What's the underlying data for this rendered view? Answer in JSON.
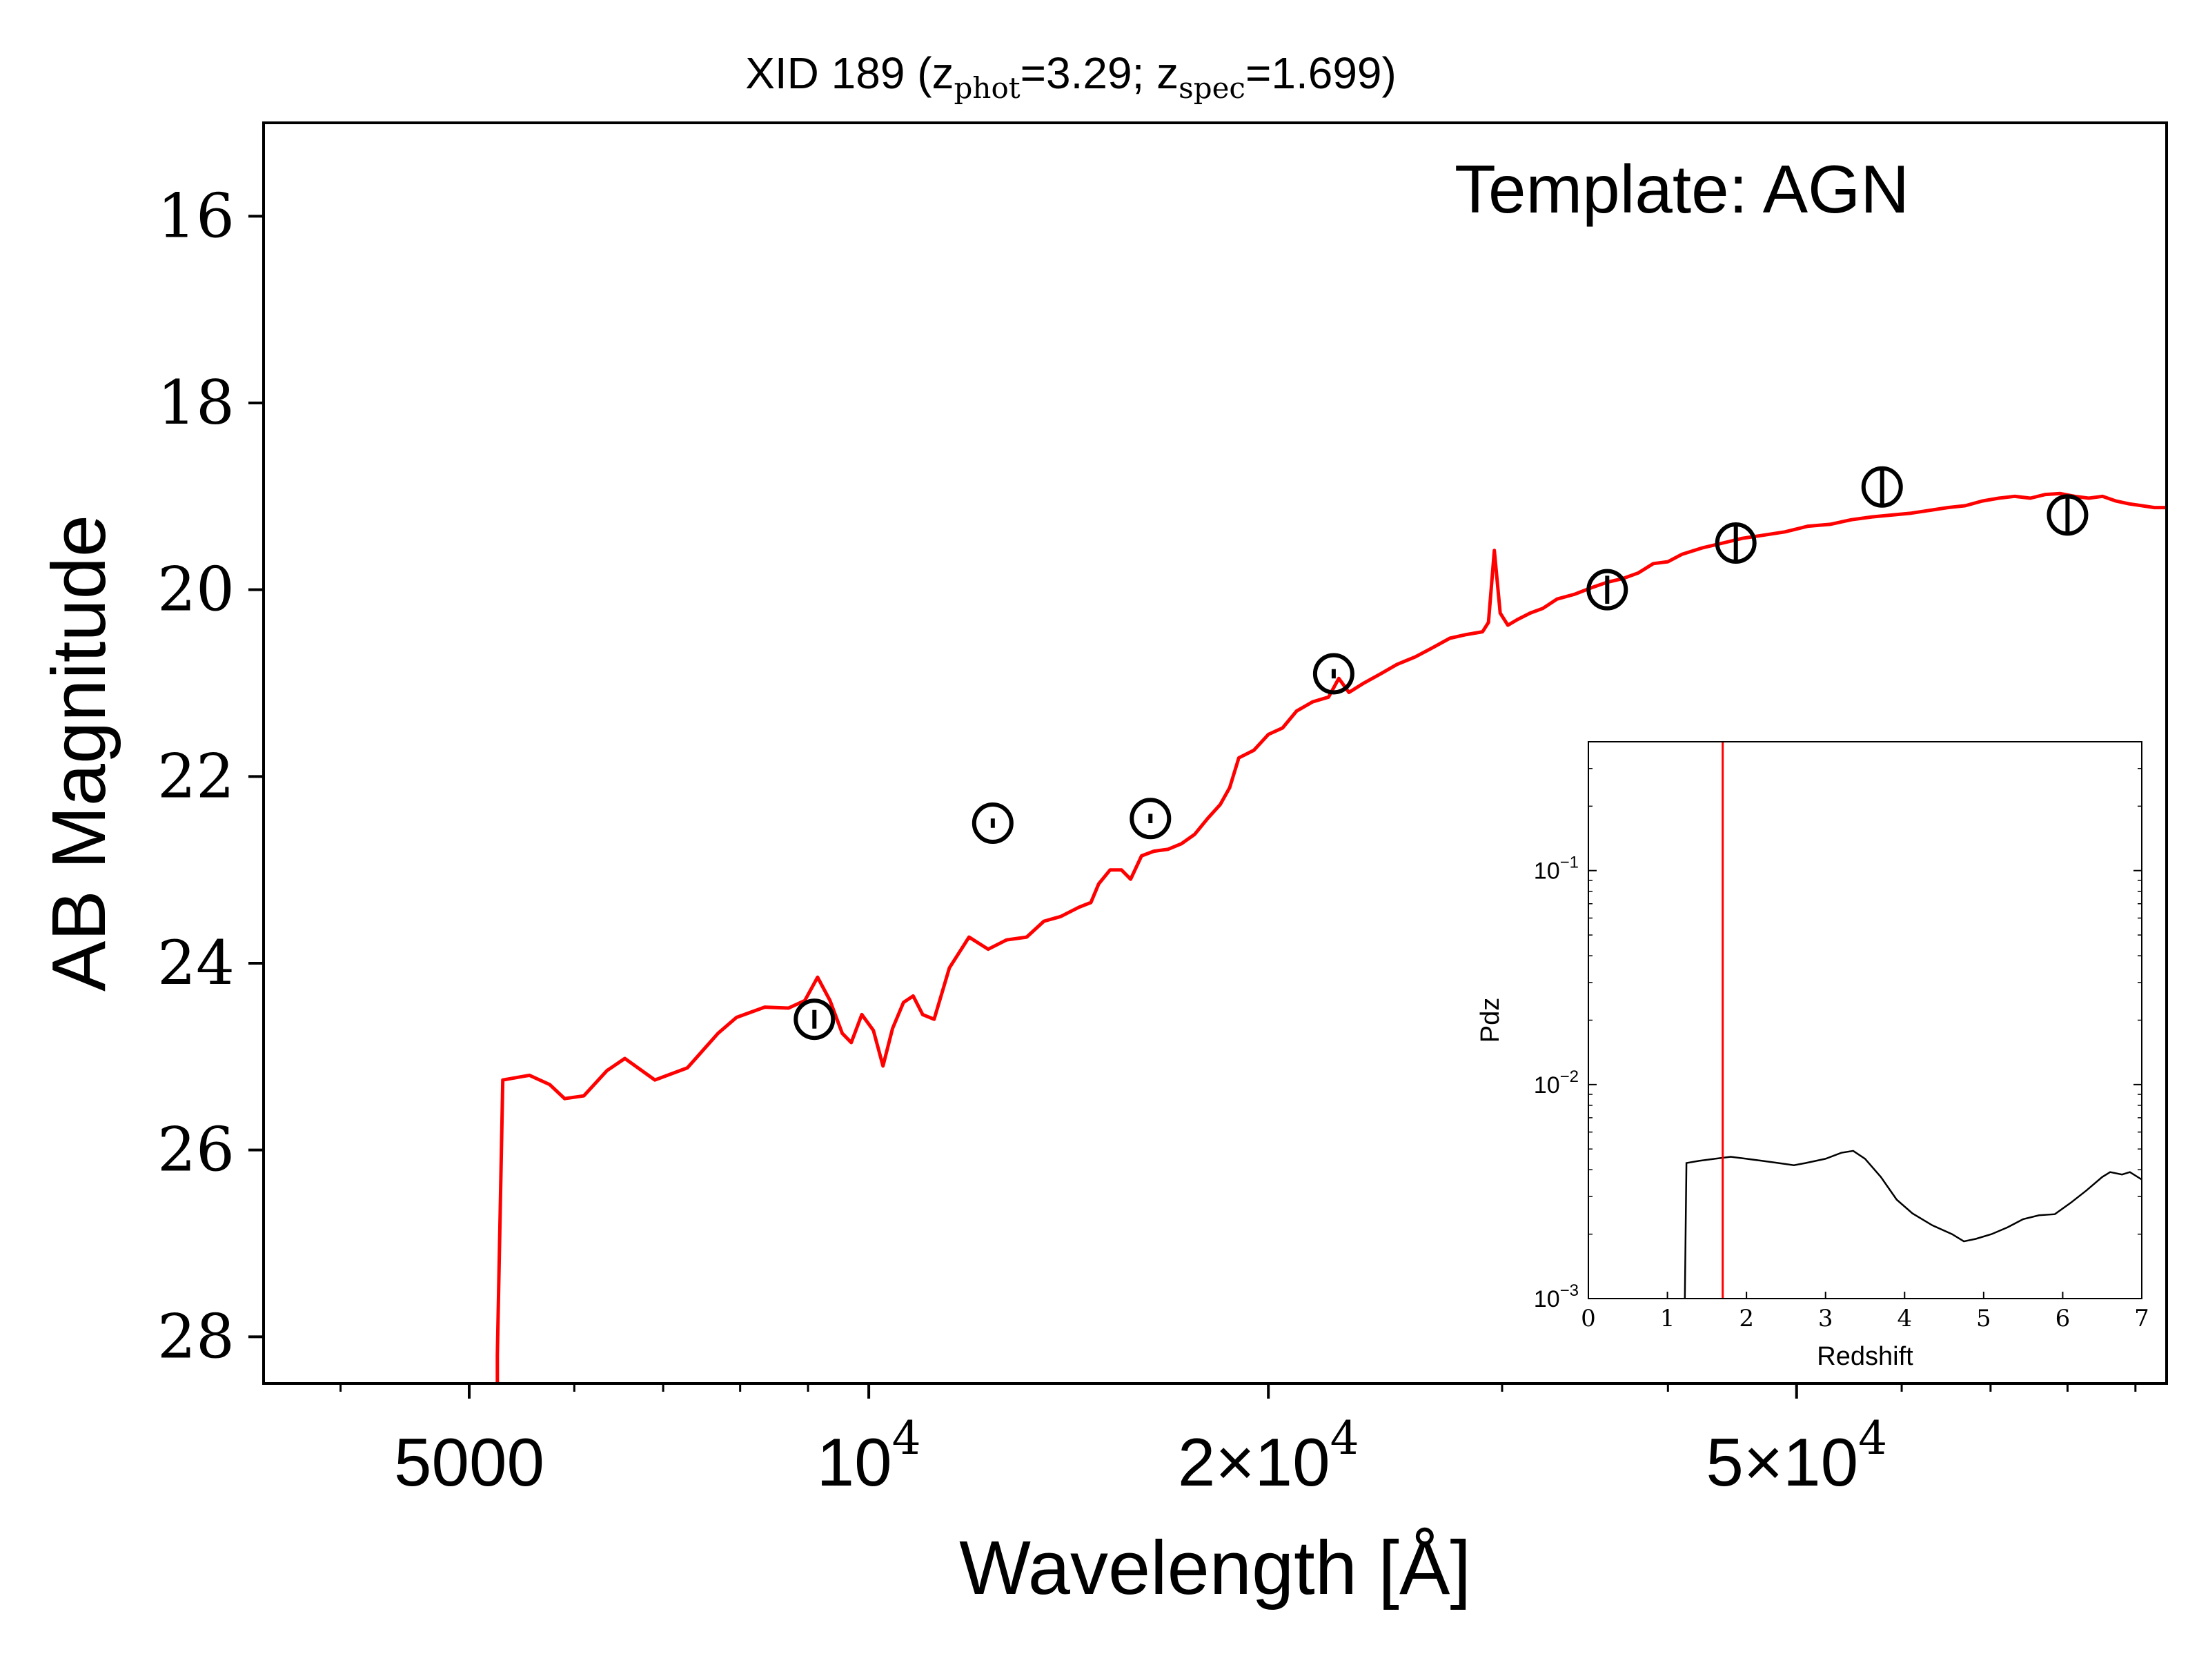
{
  "colors": {
    "model": "#ff0000",
    "observed": "#000000",
    "pdz_line": "#000000",
    "zspec_line": "#ff0000",
    "background": "#ffffff"
  },
  "chart_data": [
    {
      "type": "line",
      "panel": "main",
      "title": {
        "prefix": "XID 189 (z",
        "sub1": "phot",
        "mid": "=3.29; z",
        "sub2": "spec",
        "suffix": "=1.699)"
      },
      "annotation": "Template: AGN",
      "xlabel": "Wavelength [Å]",
      "ylabel": "AB Magnitude",
      "xscale": "log",
      "xlim": [
        3500,
        95000
      ],
      "ylim": [
        28.5,
        15.0
      ],
      "y_inverted": true,
      "xticks_major": [
        {
          "value": 5000,
          "label": "5000"
        },
        {
          "value": 10000,
          "label": "10",
          "sup": "4"
        },
        {
          "value": 20000,
          "label": "2×10",
          "sup": "4"
        },
        {
          "value": 50000,
          "label": "5×10",
          "sup": "4"
        }
      ],
      "xticks_minor": [
        4000,
        6000,
        7000,
        8000,
        9000,
        30000,
        40000,
        60000,
        70000,
        80000,
        90000
      ],
      "yticks": [
        16,
        18,
        20,
        22,
        24,
        26,
        28
      ],
      "series": [
        {
          "kind": "model-sed",
          "color": "#ff0000",
          "points": [
            [
              5250,
              28.6
            ],
            [
              5250,
              28.2
            ],
            [
              5300,
              25.25
            ],
            [
              5550,
              25.2
            ],
            [
              5750,
              25.3
            ],
            [
              5900,
              25.45
            ],
            [
              6100,
              25.42
            ],
            [
              6350,
              25.15
            ],
            [
              6550,
              25.02
            ],
            [
              6900,
              25.25
            ],
            [
              7300,
              25.12
            ],
            [
              7700,
              24.75
            ],
            [
              7950,
              24.58
            ],
            [
              8350,
              24.47
            ],
            [
              8700,
              24.48
            ],
            [
              8950,
              24.4
            ],
            [
              9150,
              24.15
            ],
            [
              9350,
              24.4
            ],
            [
              9550,
              24.75
            ],
            [
              9700,
              24.85
            ],
            [
              9880,
              24.55
            ],
            [
              10080,
              24.72
            ],
            [
              10250,
              25.1
            ],
            [
              10420,
              24.7
            ],
            [
              10620,
              24.42
            ],
            [
              10800,
              24.35
            ],
            [
              10980,
              24.55
            ],
            [
              11200,
              24.6
            ],
            [
              11500,
              24.05
            ],
            [
              11900,
              23.72
            ],
            [
              12300,
              23.85
            ],
            [
              12700,
              23.75
            ],
            [
              13150,
              23.72
            ],
            [
              13550,
              23.55
            ],
            [
              13950,
              23.5
            ],
            [
              14400,
              23.4
            ],
            [
              14700,
              23.35
            ],
            [
              14900,
              23.15
            ],
            [
              15200,
              23.0
            ],
            [
              15500,
              23.0
            ],
            [
              15750,
              23.1
            ],
            [
              16050,
              22.85
            ],
            [
              16400,
              22.8
            ],
            [
              16800,
              22.78
            ],
            [
              17200,
              22.72
            ],
            [
              17600,
              22.62
            ],
            [
              18000,
              22.45
            ],
            [
              18400,
              22.3
            ],
            [
              18700,
              22.12
            ],
            [
              19000,
              21.8
            ],
            [
              19500,
              21.72
            ],
            [
              20000,
              21.55
            ],
            [
              20500,
              21.48
            ],
            [
              21000,
              21.3
            ],
            [
              21600,
              21.2
            ],
            [
              22200,
              21.15
            ],
            [
              22600,
              20.95
            ],
            [
              23000,
              21.1
            ],
            [
              23600,
              21.0
            ],
            [
              24300,
              20.9
            ],
            [
              25000,
              20.8
            ],
            [
              25800,
              20.72
            ],
            [
              26600,
              20.62
            ],
            [
              27400,
              20.52
            ],
            [
              28200,
              20.48
            ],
            [
              29000,
              20.45
            ],
            [
              29300,
              20.35
            ],
            [
              29600,
              19.58
            ],
            [
              29900,
              20.25
            ],
            [
              30300,
              20.38
            ],
            [
              30800,
              20.32
            ],
            [
              31500,
              20.25
            ],
            [
              32200,
              20.2
            ],
            [
              33000,
              20.1
            ],
            [
              34000,
              20.05
            ],
            [
              35000,
              19.98
            ],
            [
              36000,
              19.92
            ],
            [
              37000,
              19.88
            ],
            [
              38000,
              19.82
            ],
            [
              39000,
              19.72
            ],
            [
              40000,
              19.7
            ],
            [
              41000,
              19.62
            ],
            [
              42500,
              19.55
            ],
            [
              44000,
              19.5
            ],
            [
              45500,
              19.45
            ],
            [
              47000,
              19.42
            ],
            [
              49000,
              19.38
            ],
            [
              51000,
              19.32
            ],
            [
              53000,
              19.3
            ],
            [
              55000,
              19.25
            ],
            [
              57000,
              19.22
            ],
            [
              59000,
              19.2
            ],
            [
              61000,
              19.18
            ],
            [
              63000,
              19.15
            ],
            [
              65000,
              19.12
            ],
            [
              67000,
              19.1
            ],
            [
              69000,
              19.05
            ],
            [
              71000,
              19.02
            ],
            [
              73000,
              19.0
            ],
            [
              75000,
              19.02
            ],
            [
              77000,
              18.98
            ],
            [
              79000,
              18.97
            ],
            [
              81000,
              19.0
            ],
            [
              83000,
              19.02
            ],
            [
              85000,
              19.0
            ],
            [
              87000,
              19.05
            ],
            [
              89000,
              19.08
            ],
            [
              91000,
              19.1
            ],
            [
              93000,
              19.12
            ],
            [
              95000,
              19.12
            ]
          ]
        },
        {
          "kind": "observed-photometry",
          "color": "#000000",
          "marker": "open-circle",
          "points": [
            {
              "x": 9100,
              "y": 24.6,
              "yerr": 0.1
            },
            {
              "x": 12400,
              "y": 22.5,
              "yerr": 0.05
            },
            {
              "x": 16300,
              "y": 22.45,
              "yerr": 0.05
            },
            {
              "x": 22400,
              "y": 20.9,
              "yerr": 0.05
            },
            {
              "x": 36000,
              "y": 20.0,
              "yerr": 0.15
            },
            {
              "x": 45000,
              "y": 19.5,
              "yerr": 0.18
            },
            {
              "x": 58000,
              "y": 18.9,
              "yerr": 0.18
            },
            {
              "x": 80000,
              "y": 19.2,
              "yerr": 0.18
            }
          ]
        }
      ]
    },
    {
      "type": "line",
      "panel": "inset",
      "xlabel": "Redshift",
      "ylabel": "Pdz",
      "xscale": "linear",
      "yscale": "log",
      "xlim": [
        0,
        7
      ],
      "ylim": [
        0.001,
        0.4
      ],
      "xticks": [
        0,
        1,
        2,
        3,
        4,
        5,
        6,
        7
      ],
      "yticks": [
        {
          "value": 0.001,
          "label": "10",
          "sup": "−3"
        },
        {
          "value": 0.01,
          "label": "10",
          "sup": "−2"
        },
        {
          "value": 0.1,
          "label": "10",
          "sup": "−1"
        }
      ],
      "z_spec_line": 1.699,
      "series": [
        {
          "kind": "pdz",
          "color": "#000000",
          "points": [
            [
              1.22,
              0.001
            ],
            [
              1.24,
              0.0043
            ],
            [
              1.4,
              0.0044
            ],
            [
              1.6,
              0.0045
            ],
            [
              1.8,
              0.0046
            ],
            [
              2.0,
              0.0045
            ],
            [
              2.2,
              0.0044
            ],
            [
              2.4,
              0.0043
            ],
            [
              2.6,
              0.0042
            ],
            [
              2.75,
              0.0043
            ],
            [
              3.0,
              0.0045
            ],
            [
              3.2,
              0.0048
            ],
            [
              3.35,
              0.0049
            ],
            [
              3.5,
              0.0045
            ],
            [
              3.7,
              0.0037
            ],
            [
              3.9,
              0.0029
            ],
            [
              4.1,
              0.0025
            ],
            [
              4.35,
              0.0022
            ],
            [
              4.6,
              0.002
            ],
            [
              4.75,
              0.00185
            ],
            [
              4.9,
              0.0019
            ],
            [
              5.1,
              0.002
            ],
            [
              5.3,
              0.00215
            ],
            [
              5.5,
              0.00235
            ],
            [
              5.7,
              0.00245
            ],
            [
              5.9,
              0.00248
            ],
            [
              6.1,
              0.0028
            ],
            [
              6.3,
              0.0032
            ],
            [
              6.5,
              0.0037
            ],
            [
              6.6,
              0.0039
            ],
            [
              6.75,
              0.0038
            ],
            [
              6.85,
              0.0039
            ],
            [
              7.0,
              0.0036
            ]
          ]
        }
      ]
    }
  ]
}
